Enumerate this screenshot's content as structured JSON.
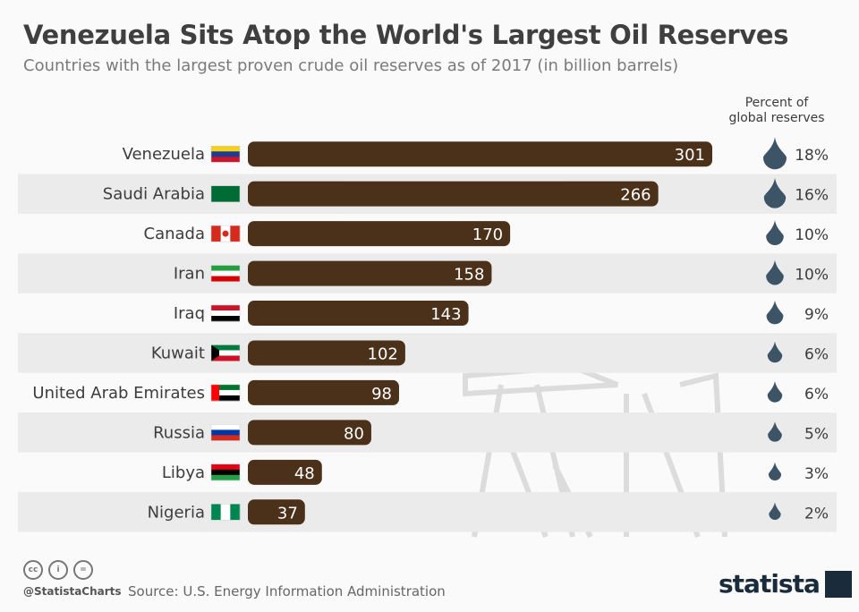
{
  "title": "Venezuela Sits Atop the World's Largest Oil Reserves",
  "subtitle": "Countries with the largest proven crude oil reserves as of 2017 (in billion barrels)",
  "percent_header": [
    "Percent of",
    "global reserves"
  ],
  "colors": {
    "bar": "#4b301a",
    "drop": "#3d5366",
    "stripe": "#ebebeb"
  },
  "chart_data": {
    "type": "bar",
    "orientation": "horizontal",
    "title": "Venezuela Sits Atop the World's Largest Oil Reserves",
    "categories": [
      "Venezuela",
      "Saudi Arabia",
      "Canada",
      "Iran",
      "Iraq",
      "Kuwait",
      "United Arab Emirates",
      "Russia",
      "Libya",
      "Nigeria"
    ],
    "values": [
      301,
      266,
      170,
      158,
      143,
      102,
      98,
      80,
      48,
      37
    ],
    "percent_of_global": [
      "18%",
      "16%",
      "10%",
      "10%",
      "9%",
      "6%",
      "6%",
      "5%",
      "3%",
      "2%"
    ],
    "xlim": [
      0,
      301
    ],
    "grid": false,
    "legend": "none"
  },
  "footer": {
    "handle": "@StatistaCharts",
    "source": "Source: U.S. Energy Information Administration",
    "logo": "statista",
    "license_icons": [
      "cc-icon",
      "by-icon",
      "nd-icon"
    ]
  }
}
